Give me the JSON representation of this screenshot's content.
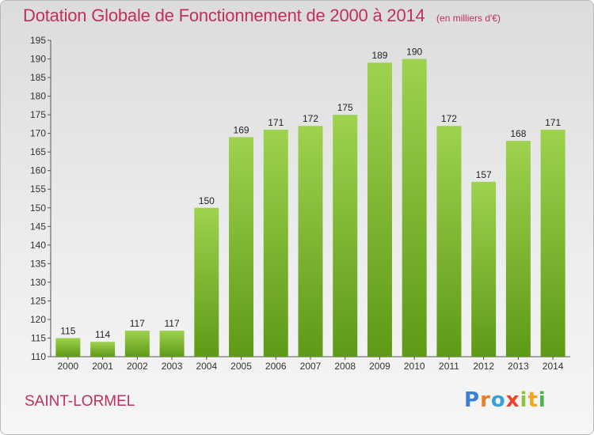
{
  "header": {
    "title": "Dotation Globale de Fonctionnement de 2000 à 2014",
    "subtitle": "(en milliers d'€)"
  },
  "footer": {
    "commune": "SAINT-LORMEL",
    "logo": "Proxiti"
  },
  "colors": {
    "title": "#c0305a",
    "bar_top": "#9ed24f",
    "bar_bottom": "#5e9a16"
  },
  "chart_data": {
    "type": "bar",
    "categories": [
      "2000",
      "2001",
      "2002",
      "2003",
      "2004",
      "2005",
      "2006",
      "2007",
      "2008",
      "2009",
      "2010",
      "2011",
      "2012",
      "2013",
      "2014"
    ],
    "values": [
      115,
      114,
      117,
      117,
      150,
      169,
      171,
      172,
      175,
      189,
      190,
      172,
      157,
      168,
      171
    ],
    "title": "Dotation Globale de Fonctionnement de 2000 à 2014",
    "subtitle": "(en milliers d'€)",
    "xlabel": "",
    "ylabel": "",
    "ylim": [
      110,
      195
    ],
    "yticks": [
      110,
      115,
      120,
      125,
      130,
      135,
      140,
      145,
      150,
      155,
      160,
      165,
      170,
      175,
      180,
      185,
      190,
      195
    ],
    "grid": false,
    "data_labels": true
  }
}
